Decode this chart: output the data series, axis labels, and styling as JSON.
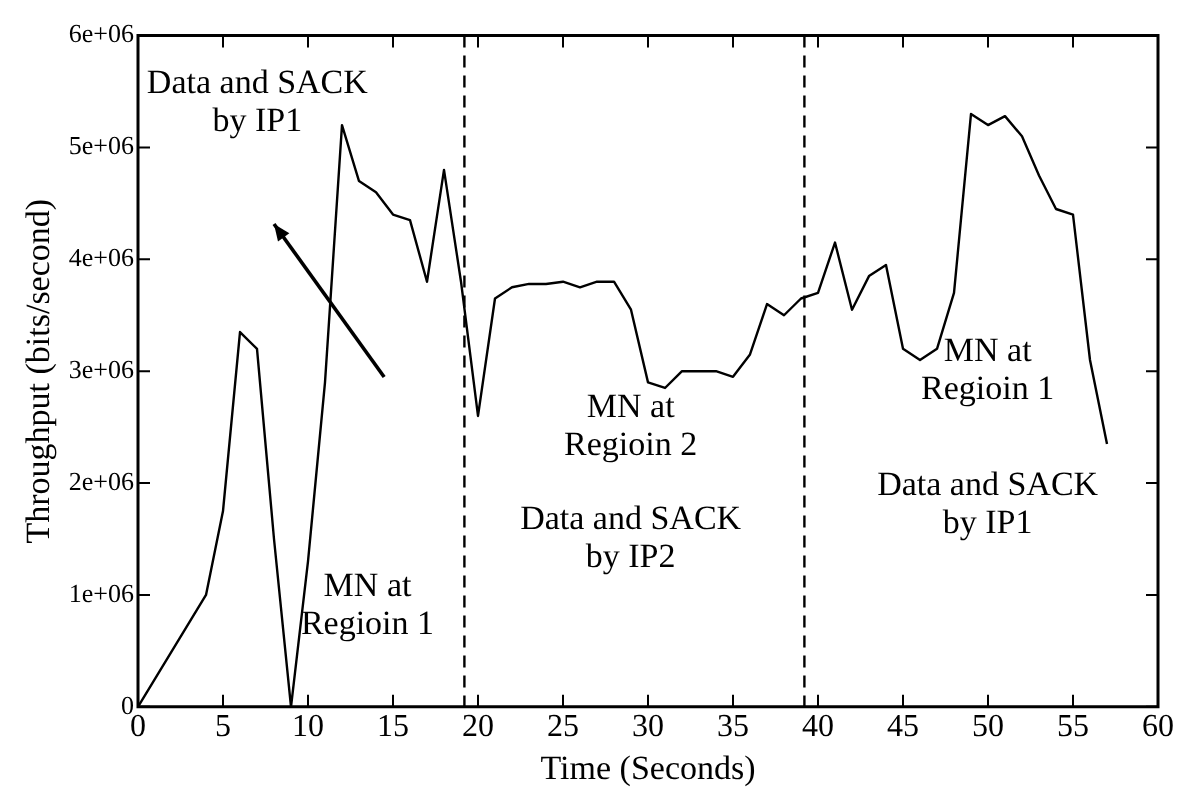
{
  "chart_data": {
    "type": "line",
    "xlabel": "Time (Seconds)",
    "ylabel": "Throughput (bits/second)",
    "x": [
      0,
      4,
      5,
      6,
      7,
      8,
      9,
      10,
      11,
      12,
      13,
      14,
      15,
      16,
      17,
      18,
      19,
      20,
      21,
      22,
      23,
      24,
      25,
      26,
      27,
      28,
      29,
      30,
      31,
      32,
      33,
      34,
      35,
      36,
      37,
      38,
      39,
      40,
      41,
      42,
      43,
      44,
      45,
      46,
      47,
      48,
      49,
      50,
      51,
      52,
      53,
      54,
      55,
      56,
      57
    ],
    "series": [
      {
        "color": "#000000",
        "values": [
          0,
          1000000,
          1750000,
          3350000,
          3200000,
          1500000,
          0,
          1300000,
          2900000,
          5200000,
          4700000,
          4600000,
          4400000,
          4350000,
          3800000,
          4800000,
          3800000,
          2600000,
          3650000,
          3750000,
          3780000,
          3780000,
          3800000,
          3750000,
          3800000,
          3800000,
          3550000,
          2900000,
          2850000,
          3000000,
          3000000,
          3000000,
          2950000,
          3150000,
          3600000,
          3500000,
          3650000,
          3700000,
          4150000,
          3550000,
          3850000,
          3950000,
          3200000,
          3100000,
          3200000,
          3700000,
          5300000,
          5200000,
          5280000,
          5100000,
          4750000,
          4450000,
          4400000,
          3100000,
          2350000
        ]
      }
    ],
    "xlim": [
      0,
      60
    ],
    "xticks": [
      0,
      5,
      10,
      15,
      20,
      25,
      30,
      35,
      40,
      45,
      50,
      55,
      60
    ],
    "ylim": [
      0,
      6000000
    ],
    "yticks": [
      0,
      {
        "value": 1000000,
        "label": "1e+06"
      },
      {
        "value": 2000000,
        "label": "2e+06"
      },
      {
        "value": 3000000,
        "label": "3e+06"
      },
      {
        "value": 4000000,
        "label": "4e+06"
      },
      {
        "value": 5000000,
        "label": "5e+06"
      },
      {
        "value": 6000000,
        "label": "6e+06"
      }
    ],
    "grid": false,
    "legend": false,
    "marker": "none",
    "line_style": "solid",
    "ref_lines": [
      {
        "axis": "x",
        "value": 19.2,
        "line_style": "dashed",
        "color": "#000000"
      },
      {
        "axis": "x",
        "value": 39.2,
        "line_style": "dashed",
        "color": "#000000"
      }
    ],
    "annotations": [
      "Data and SACK\nby IP1",
      "MN at\nRegioin 1",
      "MN at\nRegioin 2",
      "Data and SACK\nby IP2",
      "MN at\nRegioin 1",
      "Data and SACK\nby IP1"
    ]
  }
}
